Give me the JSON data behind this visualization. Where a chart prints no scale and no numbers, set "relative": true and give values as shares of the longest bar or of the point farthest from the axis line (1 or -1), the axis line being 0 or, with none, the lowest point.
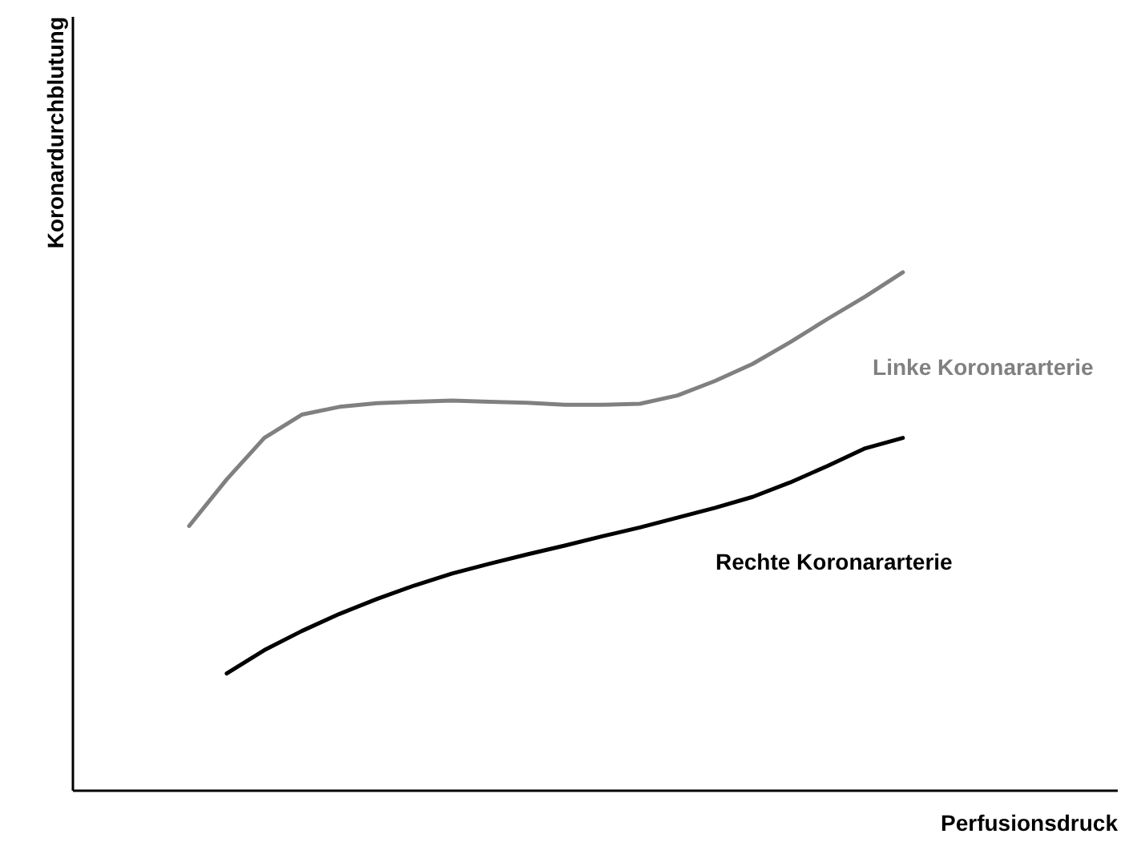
{
  "chart_data": {
    "type": "line",
    "relative": true,
    "xlabel": "Perfusionsdruck",
    "ylabel": "Koronardurchblutung",
    "categories": [
      null,
      null,
      null,
      null,
      null,
      null,
      null,
      null,
      null,
      null,
      null,
      null,
      null,
      null,
      null,
      null,
      null,
      null,
      null,
      null
    ],
    "tick_labels": false,
    "grid": false,
    "marker": "none",
    "line_style": "solid",
    "series": [
      {
        "name": "Linke Koronararterie",
        "color": "#808080",
        "values": [
          0.51,
          0.6,
          0.68,
          0.725,
          0.74,
          0.747,
          0.75,
          0.752,
          0.75,
          0.748,
          0.744,
          0.744,
          0.746,
          0.762,
          0.79,
          0.823,
          0.865,
          0.91,
          0.953,
          1
        ]
      },
      {
        "name": "Rechte Koronararterie",
        "color": "#000000",
        "values": [
          null,
          0.225,
          0.27,
          0.307,
          0.34,
          0.369,
          0.395,
          0.418,
          0.437,
          0.455,
          0.472,
          0.49,
          0.507,
          0.526,
          0.545,
          0.566,
          0.594,
          0.626,
          0.66,
          0.68
        ]
      }
    ]
  }
}
